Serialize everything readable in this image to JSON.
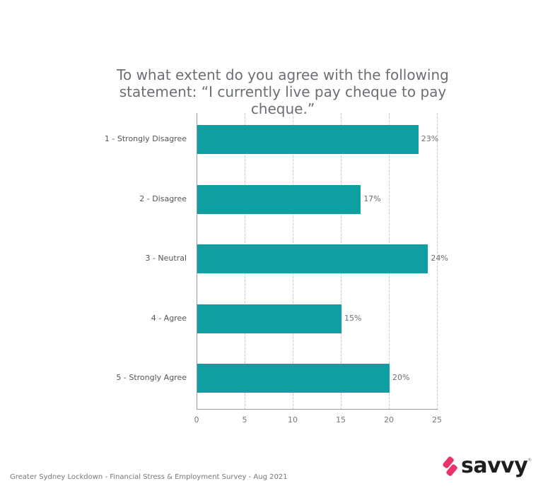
{
  "chart_data": {
    "type": "bar",
    "orientation": "horizontal",
    "title": "To what extent do you agree with the following statement: “I currently live pay cheque to pay cheque.”",
    "categories": [
      "1 - Strongly Disagree",
      "2 - Disagree",
      "3 - Neutral",
      "4 - Agree",
      "5 - Strongly Agree"
    ],
    "values": [
      23,
      17,
      24,
      15,
      20
    ],
    "value_labels": [
      "23%",
      "17%",
      "24%",
      "15%",
      "20%"
    ],
    "xlabel": "",
    "ylabel": "",
    "xlim": [
      0,
      25
    ],
    "xticks": [
      0,
      5,
      10,
      15,
      20,
      25
    ],
    "grid": "vertical dashed",
    "bar_color": "#0f9ea2"
  },
  "title": "To what extent do you agree with the following statement: “I currently live pay cheque to pay cheque.”",
  "footer": "Greater Sydney Lockdown - Financial Stress & Employment Survey - Aug 2021",
  "logo": {
    "text": "savvy",
    "mark_color": "#e8336b",
    "icon": "savvy-logo-icon"
  },
  "xticks": [
    "0",
    "5",
    "10",
    "15",
    "20",
    "25"
  ],
  "bars": [
    {
      "label": "1 - Strongly Disagree",
      "value": "23%"
    },
    {
      "label": "2 - Disagree",
      "value": "17%"
    },
    {
      "label": "3 - Neutral",
      "value": "24%"
    },
    {
      "label": "4 - Agree",
      "value": "15%"
    },
    {
      "label": "5 - Strongly Agree",
      "value": "20%"
    }
  ]
}
